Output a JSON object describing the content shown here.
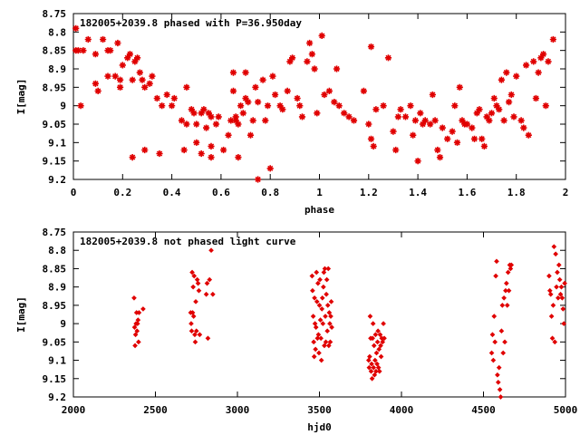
{
  "colors": {
    "points": "#e00000",
    "axes": "#000000",
    "background": "#ffffff"
  },
  "chart_data": [
    {
      "type": "scatter",
      "title": "182005+2039.8 phased with P=36.950day",
      "xlabel": "phase",
      "ylabel": "I[mag]",
      "xlim": [
        0,
        2
      ],
      "ylim": [
        8.75,
        9.2
      ],
      "y_inverted": true,
      "xticks": [
        0,
        0.2,
        0.4,
        0.6,
        0.8,
        1,
        1.2,
        1.4,
        1.6,
        1.8,
        2
      ],
      "xtick_labels": [
        "0",
        "0.2",
        "0.4",
        "0.6",
        "0.8",
        "1",
        "1.2",
        "1.4",
        "1.6",
        "1.8",
        "2"
      ],
      "yticks": [
        8.75,
        8.8,
        8.85,
        8.9,
        8.95,
        9,
        9.05,
        9.1,
        9.15,
        9.2
      ],
      "ytick_labels": [
        "8.75",
        "8.8",
        "8.85",
        "8.9",
        "8.95",
        "9",
        "9.05",
        "9.1",
        "9.15",
        "9.2"
      ],
      "marker": "star",
      "points": [
        [
          0.01,
          8.79
        ],
        [
          0.01,
          8.85
        ],
        [
          0.02,
          8.85
        ],
        [
          0.03,
          9.0
        ],
        [
          0.04,
          8.85
        ],
        [
          0.06,
          8.82
        ],
        [
          0.09,
          8.86
        ],
        [
          0.09,
          8.94
        ],
        [
          0.1,
          8.96
        ],
        [
          0.12,
          8.82
        ],
        [
          0.14,
          8.85
        ],
        [
          0.14,
          8.92
        ],
        [
          0.15,
          8.85
        ],
        [
          0.17,
          8.92
        ],
        [
          0.18,
          8.83
        ],
        [
          0.19,
          8.93
        ],
        [
          0.19,
          8.95
        ],
        [
          0.2,
          8.89
        ],
        [
          0.22,
          8.87
        ],
        [
          0.23,
          8.86
        ],
        [
          0.24,
          8.93
        ],
        [
          0.24,
          9.14
        ],
        [
          0.25,
          8.88
        ],
        [
          0.26,
          8.87
        ],
        [
          0.27,
          8.91
        ],
        [
          0.28,
          8.93
        ],
        [
          0.29,
          8.95
        ],
        [
          0.29,
          9.12
        ],
        [
          0.31,
          8.94
        ],
        [
          0.32,
          8.92
        ],
        [
          0.34,
          8.98
        ],
        [
          0.35,
          9.13
        ],
        [
          0.36,
          9.0
        ],
        [
          0.38,
          8.97
        ],
        [
          0.4,
          9.0
        ],
        [
          0.41,
          8.98
        ],
        [
          0.44,
          9.04
        ],
        [
          0.45,
          9.12
        ],
        [
          0.46,
          8.95
        ],
        [
          0.46,
          9.05
        ],
        [
          0.48,
          9.01
        ],
        [
          0.49,
          9.02
        ],
        [
          0.5,
          9.1
        ],
        [
          0.5,
          9.05
        ],
        [
          0.52,
          9.02
        ],
        [
          0.52,
          9.13
        ],
        [
          0.53,
          9.01
        ],
        [
          0.54,
          9.06
        ],
        [
          0.55,
          9.02
        ],
        [
          0.56,
          9.03
        ],
        [
          0.56,
          9.11
        ],
        [
          0.56,
          9.14
        ],
        [
          0.58,
          9.05
        ],
        [
          0.59,
          9.03
        ],
        [
          0.61,
          9.12
        ],
        [
          0.63,
          9.08
        ],
        [
          0.64,
          9.04
        ],
        [
          0.65,
          8.91
        ],
        [
          0.65,
          8.96
        ],
        [
          0.66,
          9.04
        ],
        [
          0.66,
          9.03
        ],
        [
          0.67,
          9.14
        ],
        [
          0.67,
          9.05
        ],
        [
          0.68,
          9.0
        ],
        [
          0.69,
          9.02
        ],
        [
          0.7,
          8.91
        ],
        [
          0.7,
          8.98
        ],
        [
          0.71,
          8.99
        ],
        [
          0.72,
          9.08
        ],
        [
          0.73,
          9.04
        ],
        [
          0.74,
          8.95
        ],
        [
          0.75,
          9.2
        ],
        [
          0.75,
          8.99
        ],
        [
          0.77,
          8.93
        ],
        [
          0.78,
          9.04
        ],
        [
          0.79,
          9.0
        ],
        [
          0.8,
          9.17
        ],
        [
          0.81,
          8.92
        ],
        [
          0.82,
          8.97
        ],
        [
          0.84,
          9.0
        ],
        [
          0.85,
          9.01
        ],
        [
          0.87,
          8.96
        ],
        [
          0.88,
          8.88
        ],
        [
          0.89,
          8.87
        ],
        [
          0.91,
          8.98
        ],
        [
          0.92,
          9.0
        ],
        [
          0.93,
          9.03
        ],
        [
          0.95,
          8.88
        ],
        [
          0.96,
          8.83
        ],
        [
          0.97,
          8.86
        ],
        [
          0.98,
          8.9
        ],
        [
          0.99,
          9.02
        ],
        [
          1.01,
          8.81
        ],
        [
          1.02,
          8.97
        ],
        [
          1.04,
          8.96
        ],
        [
          1.06,
          8.99
        ],
        [
          1.07,
          8.9
        ],
        [
          1.08,
          9.0
        ],
        [
          1.1,
          9.02
        ],
        [
          1.12,
          9.03
        ],
        [
          1.14,
          9.04
        ],
        [
          1.18,
          8.96
        ],
        [
          1.2,
          9.05
        ],
        [
          1.21,
          8.84
        ],
        [
          1.21,
          9.09
        ],
        [
          1.22,
          9.11
        ],
        [
          1.23,
          9.01
        ],
        [
          1.26,
          9.0
        ],
        [
          1.28,
          8.87
        ],
        [
          1.3,
          9.07
        ],
        [
          1.31,
          9.12
        ],
        [
          1.32,
          9.03
        ],
        [
          1.33,
          9.01
        ],
        [
          1.35,
          9.03
        ],
        [
          1.37,
          9.0
        ],
        [
          1.38,
          9.08
        ],
        [
          1.39,
          9.04
        ],
        [
          1.4,
          9.15
        ],
        [
          1.41,
          9.02
        ],
        [
          1.42,
          9.05
        ],
        [
          1.43,
          9.04
        ],
        [
          1.45,
          9.05
        ],
        [
          1.46,
          8.97
        ],
        [
          1.47,
          9.04
        ],
        [
          1.48,
          9.12
        ],
        [
          1.49,
          9.14
        ],
        [
          1.5,
          9.06
        ],
        [
          1.52,
          9.09
        ],
        [
          1.54,
          9.07
        ],
        [
          1.55,
          9.0
        ],
        [
          1.56,
          9.1
        ],
        [
          1.57,
          8.95
        ],
        [
          1.58,
          9.04
        ],
        [
          1.59,
          9.05
        ],
        [
          1.6,
          9.05
        ],
        [
          1.62,
          9.06
        ],
        [
          1.63,
          9.09
        ],
        [
          1.64,
          9.02
        ],
        [
          1.65,
          9.01
        ],
        [
          1.66,
          9.09
        ],
        [
          1.67,
          9.11
        ],
        [
          1.68,
          9.03
        ],
        [
          1.69,
          9.04
        ],
        [
          1.7,
          9.02
        ],
        [
          1.71,
          8.98
        ],
        [
          1.72,
          9.0
        ],
        [
          1.73,
          9.01
        ],
        [
          1.74,
          8.93
        ],
        [
          1.75,
          9.04
        ],
        [
          1.76,
          8.91
        ],
        [
          1.77,
          8.99
        ],
        [
          1.78,
          8.97
        ],
        [
          1.79,
          9.03
        ],
        [
          1.8,
          8.92
        ],
        [
          1.82,
          9.04
        ],
        [
          1.83,
          9.06
        ],
        [
          1.84,
          8.89
        ],
        [
          1.85,
          9.08
        ],
        [
          1.87,
          8.88
        ],
        [
          1.88,
          8.98
        ],
        [
          1.89,
          8.91
        ],
        [
          1.9,
          8.87
        ],
        [
          1.91,
          8.86
        ],
        [
          1.92,
          9.0
        ],
        [
          1.93,
          8.88
        ],
        [
          1.95,
          8.82
        ]
      ]
    },
    {
      "type": "scatter",
      "title": "182005+2039.8 not phased light curve",
      "xlabel": "hjd0",
      "ylabel": "I[mag]",
      "xlim": [
        2000,
        5000
      ],
      "ylim": [
        8.75,
        9.2
      ],
      "y_inverted": true,
      "xticks": [
        2000,
        2500,
        3000,
        3500,
        4000,
        4500,
        5000
      ],
      "xtick_labels": [
        "2000",
        "2500",
        "3000",
        "3500",
        "4000",
        "4500",
        "5000"
      ],
      "yticks": [
        8.75,
        8.8,
        8.85,
        8.9,
        8.95,
        9,
        9.05,
        9.1,
        9.15,
        9.2
      ],
      "ytick_labels": [
        "8.75",
        "8.8",
        "8.85",
        "8.9",
        "8.95",
        "9",
        "9.05",
        "9.1",
        "9.15",
        "9.2"
      ],
      "marker": "diamond",
      "points": [
        [
          2370,
          8.93
        ],
        [
          2373,
          9.01
        ],
        [
          2376,
          9.06
        ],
        [
          2379,
          9.03
        ],
        [
          2382,
          9.0
        ],
        [
          2385,
          8.97
        ],
        [
          2388,
          9.02
        ],
        [
          2391,
          9.0
        ],
        [
          2394,
          8.99
        ],
        [
          2397,
          9.05
        ],
        [
          2400,
          8.97
        ],
        [
          2425,
          8.96
        ],
        [
          2715,
          8.97
        ],
        [
          2718,
          9.0
        ],
        [
          2721,
          9.02
        ],
        [
          2724,
          8.86
        ],
        [
          2727,
          8.97
        ],
        [
          2730,
          8.9
        ],
        [
          2733,
          8.98
        ],
        [
          2736,
          8.87
        ],
        [
          2740,
          9.03
        ],
        [
          2743,
          9.05
        ],
        [
          2746,
          8.94
        ],
        [
          2750,
          9.02
        ],
        [
          2755,
          8.88
        ],
        [
          2760,
          8.89
        ],
        [
          2765,
          8.91
        ],
        [
          2770,
          9.03
        ],
        [
          2810,
          8.92
        ],
        [
          2815,
          8.89
        ],
        [
          2820,
          9.04
        ],
        [
          2830,
          8.88
        ],
        [
          2840,
          8.8
        ],
        [
          2850,
          8.92
        ],
        [
          3455,
          8.87
        ],
        [
          3458,
          8.91
        ],
        [
          3462,
          8.98
        ],
        [
          3465,
          9.05
        ],
        [
          3468,
          9.09
        ],
        [
          3470,
          8.93
        ],
        [
          3473,
          9.0
        ],
        [
          3476,
          9.07
        ],
        [
          3479,
          9.01
        ],
        [
          3482,
          8.86
        ],
        [
          3485,
          8.94
        ],
        [
          3488,
          9.04
        ],
        [
          3491,
          8.89
        ],
        [
          3494,
          9.03
        ],
        [
          3497,
          9.08
        ],
        [
          3500,
          8.95
        ],
        [
          3503,
          8.88
        ],
        [
          3506,
          8.99
        ],
        [
          3509,
          9.04
        ],
        [
          3512,
          9.1
        ],
        [
          3515,
          8.96
        ],
        [
          3518,
          8.93
        ],
        [
          3521,
          9.0
        ],
        [
          3524,
          8.9
        ],
        [
          3527,
          8.86
        ],
        [
          3530,
          9.06
        ],
        [
          3533,
          8.85
        ],
        [
          3536,
          8.98
        ],
        [
          3539,
          9.05
        ],
        [
          3542,
          8.92
        ],
        [
          3545,
          8.88
        ],
        [
          3548,
          9.02
        ],
        [
          3551,
          8.95
        ],
        [
          3554,
          8.85
        ],
        [
          3557,
          9.06
        ],
        [
          3560,
          8.97
        ],
        [
          3563,
          9.0
        ],
        [
          3566,
          9.05
        ],
        [
          3569,
          8.98
        ],
        [
          3572,
          8.94
        ],
        [
          3575,
          9.01
        ],
        [
          3800,
          9.1
        ],
        [
          3803,
          9.12
        ],
        [
          3806,
          9.09
        ],
        [
          3809,
          8.98
        ],
        [
          3812,
          9.04
        ],
        [
          3815,
          9.13
        ],
        [
          3818,
          9.11
        ],
        [
          3821,
          9.15
        ],
        [
          3824,
          9.04
        ],
        [
          3827,
          9.0
        ],
        [
          3830,
          9.12
        ],
        [
          3833,
          9.06
        ],
        [
          3836,
          9.14
        ],
        [
          3839,
          9.1
        ],
        [
          3842,
          9.03
        ],
        [
          3845,
          9.13
        ],
        [
          3848,
          9.08
        ],
        [
          3851,
          9.11
        ],
        [
          3854,
          9.05
        ],
        [
          3857,
          9.02
        ],
        [
          3860,
          9.12
        ],
        [
          3863,
          9.07
        ],
        [
          3866,
          9.13
        ],
        [
          3870,
          9.03
        ],
        [
          3873,
          9.06
        ],
        [
          3876,
          9.09
        ],
        [
          3880,
          9.04
        ],
        [
          3885,
          9.05
        ],
        [
          3890,
          9.0
        ],
        [
          3895,
          9.04
        ],
        [
          4550,
          9.08
        ],
        [
          4555,
          9.03
        ],
        [
          4560,
          9.1
        ],
        [
          4565,
          8.98
        ],
        [
          4570,
          9.05
        ],
        [
          4575,
          8.87
        ],
        [
          4580,
          8.83
        ],
        [
          4585,
          9.14
        ],
        [
          4590,
          9.16
        ],
        [
          4595,
          9.12
        ],
        [
          4600,
          9.18
        ],
        [
          4605,
          9.2
        ],
        [
          4610,
          9.02
        ],
        [
          4615,
          8.95
        ],
        [
          4620,
          9.08
        ],
        [
          4625,
          8.93
        ],
        [
          4630,
          9.05
        ],
        [
          4635,
          8.91
        ],
        [
          4640,
          8.89
        ],
        [
          4645,
          8.95
        ],
        [
          4650,
          8.86
        ],
        [
          4655,
          8.91
        ],
        [
          4660,
          8.84
        ],
        [
          4665,
          8.85
        ],
        [
          4670,
          8.84
        ],
        [
          4900,
          8.87
        ],
        [
          4905,
          8.91
        ],
        [
          4910,
          8.92
        ],
        [
          4915,
          8.98
        ],
        [
          4920,
          9.04
        ],
        [
          4925,
          8.95
        ],
        [
          4930,
          8.79
        ],
        [
          4935,
          9.05
        ],
        [
          4940,
          8.81
        ],
        [
          4945,
          8.9
        ],
        [
          4950,
          8.86
        ],
        [
          4955,
          8.93
        ],
        [
          4960,
          8.84
        ],
        [
          4965,
          8.88
        ],
        [
          4970,
          8.92
        ],
        [
          4975,
          8.9
        ],
        [
          4980,
          8.93
        ],
        [
          4985,
          8.96
        ],
        [
          4990,
          9.0
        ],
        [
          4995,
          8.89
        ]
      ]
    }
  ]
}
